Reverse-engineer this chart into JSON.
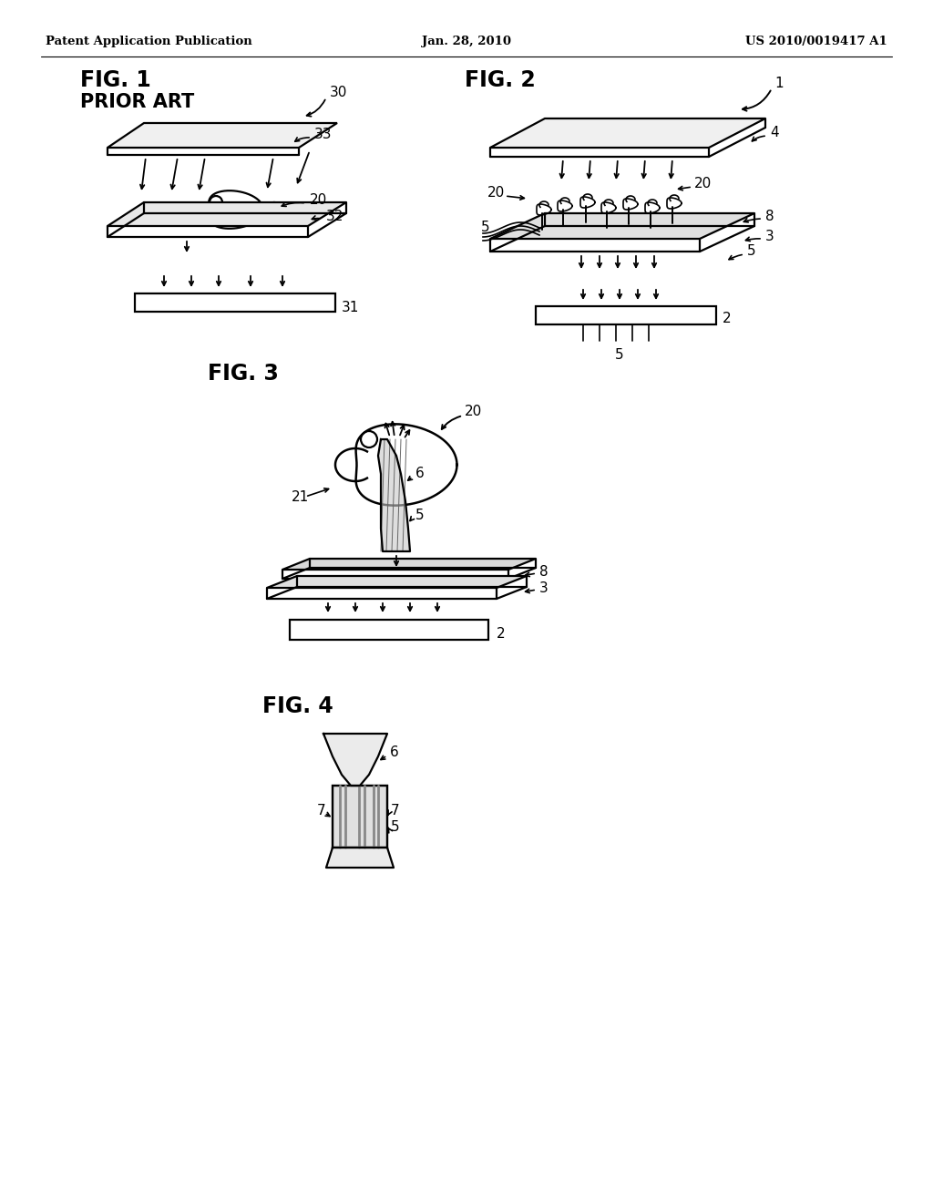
{
  "bg_color": "#ffffff",
  "header_left": "Patent Application Publication",
  "header_center": "Jan. 28, 2010",
  "header_right": "US 2010/0019417 A1",
  "lw": 1.6
}
